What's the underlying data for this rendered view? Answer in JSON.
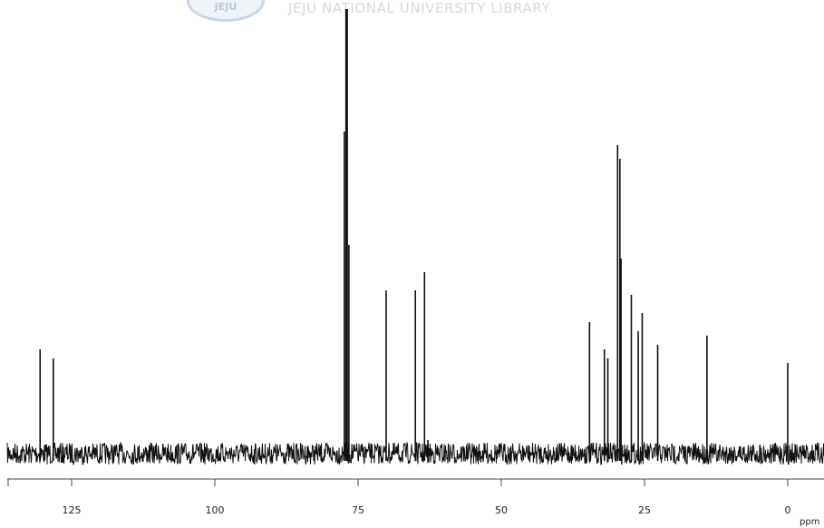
{
  "watermark": {
    "logo_text": "JEJU",
    "text": "JEJU NATIONAL UNIVERSITY  LIBRARY"
  },
  "colors": {
    "trace": "#111111",
    "background": "#ffffff",
    "watermark": "#d4dbe3"
  },
  "chart_data": {
    "type": "line",
    "title": "",
    "xlabel": "ppm",
    "ylabel": "",
    "x_reversed": true,
    "xlim": [
      135,
      -2
    ],
    "ylim": [
      0,
      100
    ],
    "xticks": [
      125,
      100,
      75,
      50,
      25,
      0
    ],
    "tick_labels": [
      "125",
      "100",
      "75",
      "50",
      "25",
      "0"
    ],
    "unit_label": "ppm",
    "baseline": 2,
    "noise_amplitude": 3,
    "peaks": [
      {
        "ppm": 130.5,
        "height": 25
      },
      {
        "ppm": 128.2,
        "height": 23
      },
      {
        "ppm": 77.4,
        "height": 73
      },
      {
        "ppm": 77.0,
        "height": 100
      },
      {
        "ppm": 76.6,
        "height": 48
      },
      {
        "ppm": 70.1,
        "height": 38
      },
      {
        "ppm": 65.0,
        "height": 38
      },
      {
        "ppm": 63.4,
        "height": 42
      },
      {
        "ppm": 62.8,
        "height": 5
      },
      {
        "ppm": 34.6,
        "height": 31
      },
      {
        "ppm": 32.0,
        "height": 25
      },
      {
        "ppm": 31.4,
        "height": 23
      },
      {
        "ppm": 29.7,
        "height": 70
      },
      {
        "ppm": 29.3,
        "height": 67
      },
      {
        "ppm": 29.1,
        "height": 45
      },
      {
        "ppm": 27.3,
        "height": 37
      },
      {
        "ppm": 26.1,
        "height": 29
      },
      {
        "ppm": 25.4,
        "height": 33
      },
      {
        "ppm": 22.7,
        "height": 26
      },
      {
        "ppm": 14.1,
        "height": 28
      },
      {
        "ppm": 0.0,
        "height": 22
      }
    ]
  }
}
